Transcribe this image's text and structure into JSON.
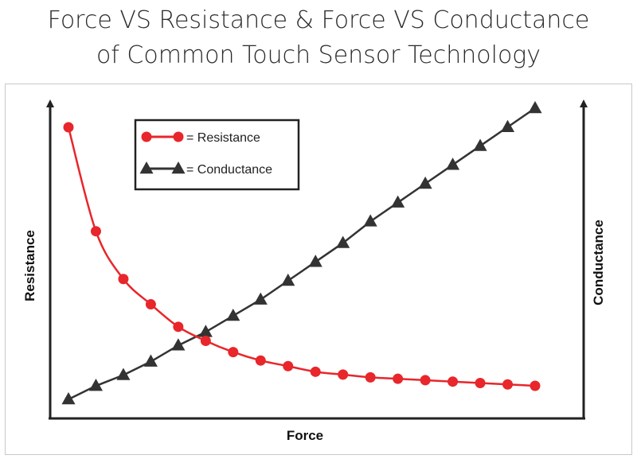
{
  "title_line1": "Force VS Resistance & Force VS Conductance",
  "title_line2": "of Common Touch Sensor Technology",
  "chart_data": {
    "type": "line",
    "xlabel": "Force",
    "ylabel_left": "Resistance",
    "ylabel_right": "Conductance",
    "grid": false,
    "legend_position": "top-left",
    "series": [
      {
        "name": "= Resistance",
        "color": "#e8262b",
        "marker": "circle",
        "x": [
          0,
          1,
          2,
          3,
          4,
          5,
          6,
          7,
          8,
          9,
          10,
          11,
          12,
          13,
          14,
          15,
          16,
          17
        ],
        "values": [
          100,
          63,
          46,
          37,
          29,
          24,
          20,
          17,
          15,
          13,
          12,
          11,
          10.5,
          10,
          9.5,
          9,
          8.5,
          8
        ]
      },
      {
        "name": "= Conductance",
        "color": "#333333",
        "marker": "triangle",
        "x": [
          0,
          1,
          2,
          3,
          4,
          5,
          6,
          7,
          8,
          9,
          10,
          11,
          12,
          13,
          14,
          15,
          16,
          17
        ],
        "values": [
          4,
          9,
          13,
          18,
          24,
          29,
          35,
          41,
          48,
          55,
          62,
          70,
          77,
          84,
          91,
          98,
          105,
          112
        ]
      }
    ]
  }
}
